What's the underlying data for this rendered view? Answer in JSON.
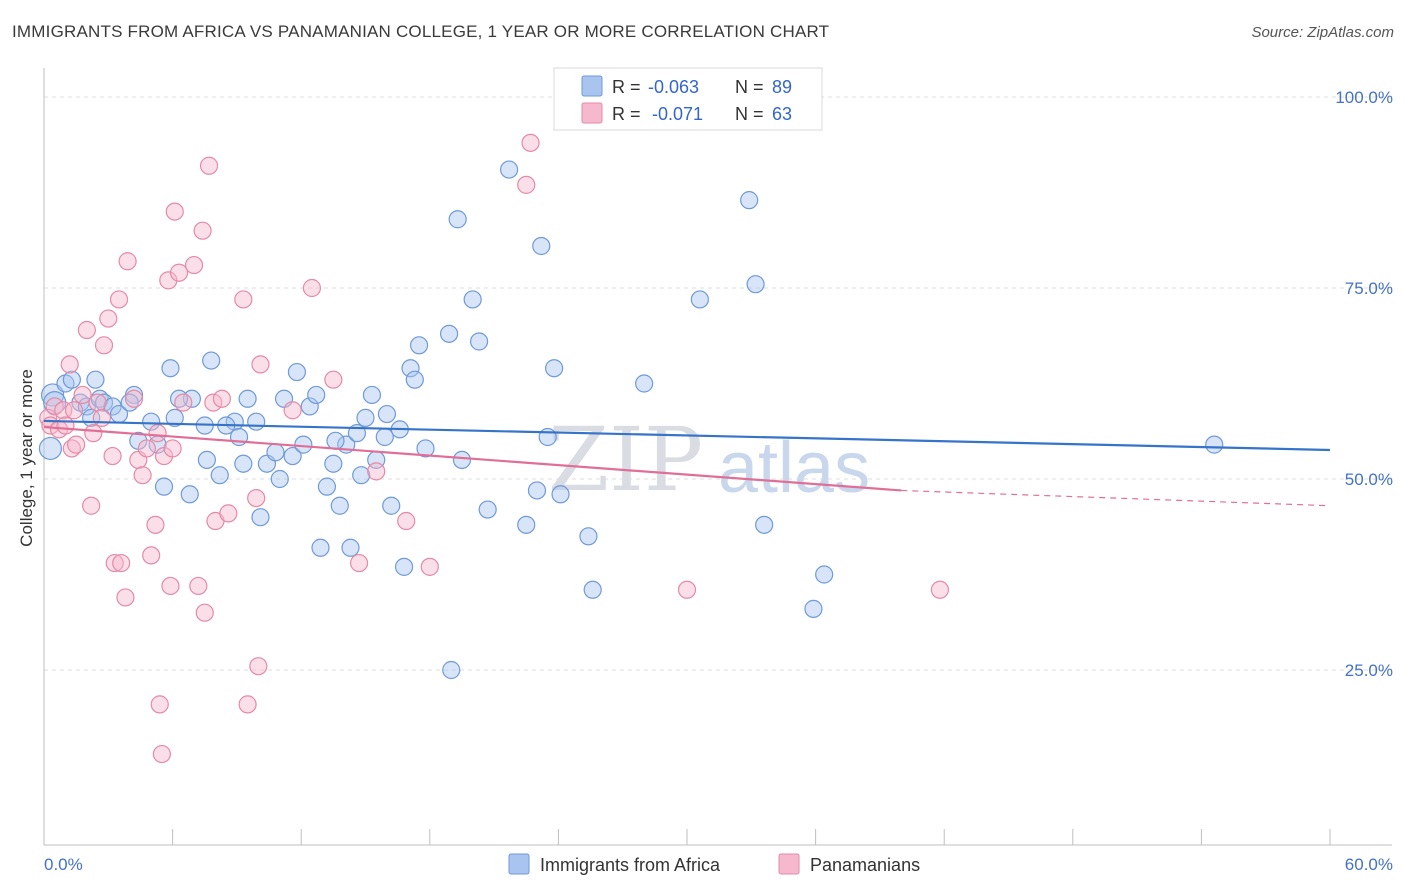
{
  "header": {
    "title": "IMMIGRANTS FROM AFRICA VS PANAMANIAN COLLEGE, 1 YEAR OR MORE CORRELATION CHART",
    "source": "Source: ZipAtlas.com"
  },
  "watermark": {
    "zip": "ZIP",
    "atlas": "atlas"
  },
  "legend": {
    "rows": [
      {
        "r_label": "R =",
        "r_value": "-0.063",
        "n_label": "N =",
        "n_value": "89",
        "color": "#a9c5ef",
        "stroke": "#6f9ad8"
      },
      {
        "r_label": "R =",
        "r_value": "-0.071",
        "n_label": "N =",
        "n_value": "63",
        "color": "#f6b8cc",
        "stroke": "#e58aa7"
      }
    ]
  },
  "bottom_legend": [
    {
      "label": "Immigrants from Africa",
      "color": "#a9c5ef",
      "stroke": "#6f9ad8"
    },
    {
      "label": "Panamanians",
      "color": "#f6b8cc",
      "stroke": "#e58aa7"
    }
  ],
  "chart_data": {
    "type": "scatter",
    "title": "IMMIGRANTS FROM AFRICA VS PANAMANIAN COLLEGE, 1 YEAR OR MORE CORRELATION CHART",
    "xlabel": "",
    "ylabel": "College, 1 year or more",
    "xlim": [
      0,
      60
    ],
    "ylim": [
      0,
      103
    ],
    "x_tick_labels": [
      "0.0%",
      "60.0%"
    ],
    "y_ticks": [
      25,
      50,
      75,
      100
    ],
    "y_tick_labels": [
      "25.0%",
      "50.0%",
      "75.0%",
      "100.0%"
    ],
    "grid": true,
    "legend_position": "top-center",
    "series": [
      {
        "name": "Immigrants from Africa",
        "color": "#6f9ad8",
        "fill": "#a9c5ef",
        "trend": {
          "x": [
            0,
            60
          ],
          "y": [
            57.6,
            53.8
          ],
          "color": "#3674c9"
        },
        "points": [
          [
            0.3,
            54.0
          ],
          [
            0.4,
            61.0
          ],
          [
            0.5,
            60.0
          ],
          [
            1.0,
            62.5
          ],
          [
            1.3,
            63.0
          ],
          [
            1.7,
            60.0
          ],
          [
            2.0,
            59.5
          ],
          [
            2.4,
            63.0
          ],
          [
            2.6,
            60.5
          ],
          [
            2.8,
            60.0
          ],
          [
            3.2,
            59.5
          ],
          [
            3.5,
            58.5
          ],
          [
            4.2,
            61.0
          ],
          [
            4.4,
            55.0
          ],
          [
            5.0,
            57.5
          ],
          [
            5.3,
            54.5
          ],
          [
            5.6,
            49.0
          ],
          [
            5.9,
            64.5
          ],
          [
            6.1,
            58.0
          ],
          [
            6.8,
            48.0
          ],
          [
            6.9,
            60.5
          ],
          [
            7.5,
            57.0
          ],
          [
            7.6,
            52.5
          ],
          [
            7.8,
            65.5
          ],
          [
            8.2,
            50.5
          ],
          [
            8.9,
            57.5
          ],
          [
            9.1,
            55.5
          ],
          [
            9.3,
            52.0
          ],
          [
            9.5,
            60.5
          ],
          [
            9.9,
            57.5
          ],
          [
            10.1,
            45.0
          ],
          [
            10.4,
            52.0
          ],
          [
            10.8,
            53.5
          ],
          [
            11.2,
            60.5
          ],
          [
            11.6,
            53.0
          ],
          [
            11.8,
            64.0
          ],
          [
            12.1,
            54.5
          ],
          [
            12.4,
            59.5
          ],
          [
            12.7,
            61.0
          ],
          [
            12.9,
            41.0
          ],
          [
            13.2,
            49.0
          ],
          [
            13.5,
            52.0
          ],
          [
            13.8,
            46.5
          ],
          [
            14.1,
            54.5
          ],
          [
            14.3,
            41.0
          ],
          [
            14.6,
            56.0
          ],
          [
            14.8,
            50.5
          ],
          [
            15.0,
            58.0
          ],
          [
            15.3,
            61.0
          ],
          [
            15.5,
            52.5
          ],
          [
            15.9,
            55.5
          ],
          [
            16.2,
            46.5
          ],
          [
            16.6,
            56.5
          ],
          [
            16.8,
            38.5
          ],
          [
            17.1,
            64.5
          ],
          [
            17.3,
            63.0
          ],
          [
            17.5,
            67.5
          ],
          [
            17.8,
            54.0
          ],
          [
            18.9,
            69.0
          ],
          [
            19.3,
            84.0
          ],
          [
            19.5,
            52.5
          ],
          [
            20.0,
            73.5
          ],
          [
            20.3,
            68.0
          ],
          [
            20.7,
            46.0
          ],
          [
            21.7,
            90.5
          ],
          [
            22.5,
            44.0
          ],
          [
            23.0,
            48.5
          ],
          [
            23.2,
            80.5
          ],
          [
            23.5,
            55.5
          ],
          [
            23.8,
            64.5
          ],
          [
            24.1,
            48.0
          ],
          [
            25.4,
            42.5
          ],
          [
            25.6,
            35.5
          ],
          [
            28.0,
            62.5
          ],
          [
            30.6,
            73.5
          ],
          [
            32.9,
            86.5
          ],
          [
            33.2,
            75.5
          ],
          [
            33.6,
            44.0
          ],
          [
            35.9,
            33.0
          ],
          [
            36.4,
            37.5
          ],
          [
            19.0,
            25.0
          ],
          [
            54.6,
            54.5
          ],
          [
            8.5,
            57.0
          ],
          [
            2.2,
            58.0
          ],
          [
            16.0,
            58.5
          ],
          [
            4.0,
            60.0
          ],
          [
            6.3,
            60.5
          ],
          [
            11.0,
            50.0
          ],
          [
            13.6,
            55.0
          ]
        ]
      },
      {
        "name": "Panamanians",
        "color": "#e58aa7",
        "fill": "#f6b8cc",
        "trend": {
          "x": [
            0,
            40
          ],
          "y": [
            56.8,
            48.5
          ],
          "color": "#e06f97"
        },
        "trend_dashed": {
          "x": [
            40,
            60
          ],
          "y": [
            48.5,
            46.5
          ]
        },
        "points": [
          [
            0.2,
            58.0
          ],
          [
            0.3,
            57.0
          ],
          [
            0.5,
            59.5
          ],
          [
            0.7,
            56.5
          ],
          [
            0.9,
            59.0
          ],
          [
            1.0,
            57.0
          ],
          [
            1.2,
            65.0
          ],
          [
            1.3,
            54.0
          ],
          [
            1.4,
            59.0
          ],
          [
            1.5,
            54.5
          ],
          [
            1.8,
            61.0
          ],
          [
            2.0,
            69.5
          ],
          [
            2.2,
            46.5
          ],
          [
            2.3,
            56.0
          ],
          [
            2.5,
            60.0
          ],
          [
            2.7,
            58.0
          ],
          [
            2.8,
            67.5
          ],
          [
            3.0,
            71.0
          ],
          [
            3.2,
            53.0
          ],
          [
            3.3,
            39.0
          ],
          [
            3.5,
            73.5
          ],
          [
            3.6,
            39.0
          ],
          [
            3.8,
            34.5
          ],
          [
            3.9,
            78.5
          ],
          [
            4.2,
            60.5
          ],
          [
            4.4,
            52.5
          ],
          [
            4.6,
            50.5
          ],
          [
            4.8,
            54.0
          ],
          [
            5.0,
            40.0
          ],
          [
            5.2,
            44.0
          ],
          [
            5.3,
            56.0
          ],
          [
            5.4,
            20.5
          ],
          [
            5.5,
            14.0
          ],
          [
            5.6,
            53.0
          ],
          [
            5.8,
            76.0
          ],
          [
            5.9,
            36.0
          ],
          [
            6.0,
            54.0
          ],
          [
            6.1,
            85.0
          ],
          [
            6.3,
            77.0
          ],
          [
            6.5,
            60.0
          ],
          [
            7.0,
            78.0
          ],
          [
            7.2,
            36.0
          ],
          [
            7.4,
            82.5
          ],
          [
            7.5,
            32.5
          ],
          [
            7.7,
            91.0
          ],
          [
            7.9,
            60.0
          ],
          [
            8.0,
            44.5
          ],
          [
            8.3,
            60.5
          ],
          [
            8.6,
            45.5
          ],
          [
            9.3,
            73.5
          ],
          [
            9.5,
            20.5
          ],
          [
            9.9,
            47.5
          ],
          [
            10.0,
            25.5
          ],
          [
            10.1,
            65.0
          ],
          [
            11.6,
            59.0
          ],
          [
            12.5,
            75.0
          ],
          [
            13.5,
            63.0
          ],
          [
            14.7,
            39.0
          ],
          [
            15.5,
            51.0
          ],
          [
            16.9,
            44.5
          ],
          [
            18.0,
            38.5
          ],
          [
            22.5,
            88.5
          ],
          [
            22.7,
            94.0
          ]
        ]
      }
    ],
    "extra_points_series2": [
      [
        30.0,
        35.5
      ],
      [
        41.8,
        35.5
      ]
    ]
  }
}
